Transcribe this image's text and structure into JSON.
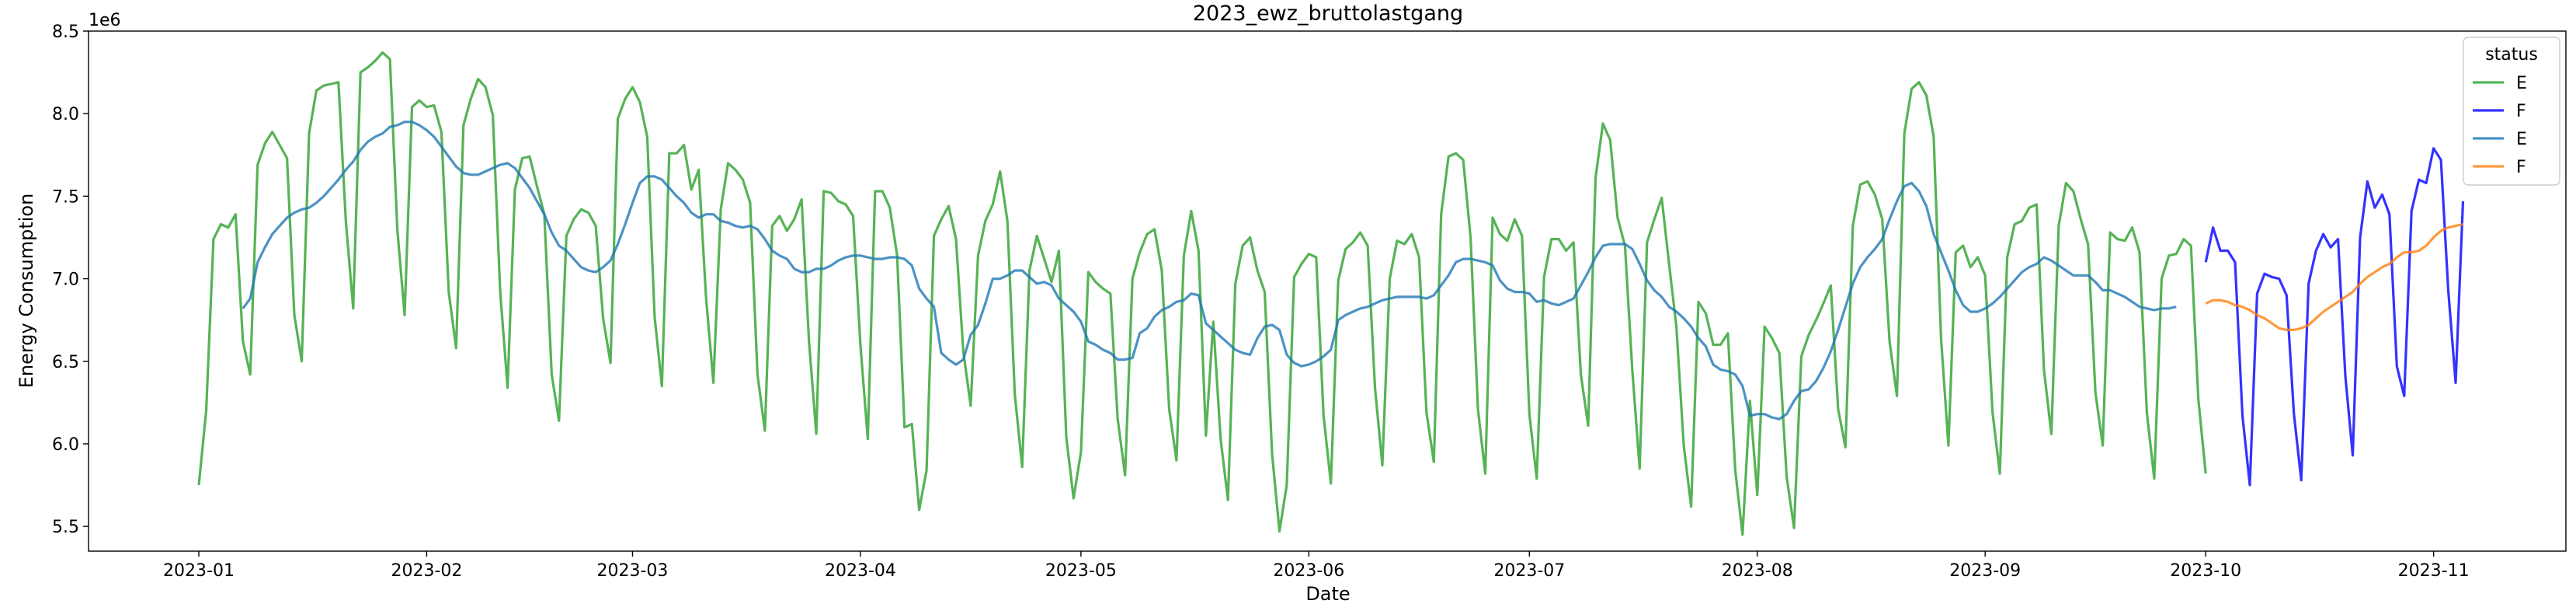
{
  "chart_data": {
    "type": "line",
    "title": "2023_ewz_bruttolastgang",
    "xlabel": "Date",
    "ylabel": "Energy Consumption",
    "y_offset_label": "1e6",
    "ylim": [
      5.35,
      8.5
    ],
    "xlim": [
      "2022-12-17",
      "2023-11-19"
    ],
    "x_ticks": [
      "2023-01-01",
      "2023-02-01",
      "2023-03-01",
      "2023-04-01",
      "2023-05-01",
      "2023-06-01",
      "2023-07-01",
      "2023-08-01",
      "2023-09-01",
      "2023-10-01",
      "2023-11-01"
    ],
    "x_tick_labels": [
      "2023-01",
      "2023-02",
      "2023-03",
      "2023-04",
      "2023-05",
      "2023-06",
      "2023-07",
      "2023-08",
      "2023-09",
      "2023-10",
      "2023-11"
    ],
    "y_ticks": [
      5.5,
      6.0,
      6.5,
      7.0,
      7.5,
      8.0,
      8.5
    ],
    "y_tick_labels": [
      "5.5",
      "6.0",
      "6.5",
      "7.0",
      "7.5",
      "8.0",
      "8.5"
    ],
    "grid": false,
    "legend": {
      "title": "status",
      "placement": "top-right",
      "entries": [
        {
          "label": "E",
          "color": "#2ca02c"
        },
        {
          "label": "F",
          "color": "#0000ff"
        },
        {
          "label": "E",
          "color": "#1f77b4"
        },
        {
          "label": "F",
          "color": "#ff7f0e"
        }
      ]
    },
    "series": [
      {
        "name": "E",
        "color": "#2ca02c",
        "start_date": "2023-01-01",
        "values": [
          5.75,
          6.2,
          7.24,
          7.33,
          7.31,
          7.39,
          6.62,
          6.42,
          7.69,
          7.82,
          7.89,
          7.81,
          7.73,
          6.78,
          6.5,
          7.88,
          8.14,
          8.17,
          8.18,
          8.19,
          7.35,
          6.82,
          8.25,
          8.28,
          8.32,
          8.37,
          8.33,
          7.3,
          6.78,
          8.04,
          8.08,
          8.04,
          8.05,
          7.89,
          6.92,
          6.58,
          7.93,
          8.09,
          8.21,
          8.16,
          7.99,
          6.92,
          6.34,
          7.54,
          7.73,
          7.74,
          7.56,
          7.39,
          6.42,
          6.14,
          7.26,
          7.36,
          7.42,
          7.4,
          7.32,
          6.76,
          6.49,
          7.97,
          8.09,
          8.16,
          8.07,
          7.86,
          6.77,
          6.35,
          7.76,
          7.76,
          7.81,
          7.54,
          7.66,
          6.89,
          6.37,
          7.42,
          7.7,
          7.66,
          7.6,
          7.46,
          6.42,
          6.08,
          7.32,
          7.38,
          7.29,
          7.36,
          7.48,
          6.62,
          6.06,
          7.53,
          7.52,
          7.47,
          7.45,
          7.38,
          6.6,
          6.03,
          7.53,
          7.53,
          7.43,
          7.14,
          6.1,
          6.12,
          5.6,
          5.84,
          7.26,
          7.36,
          7.44,
          7.24,
          6.56,
          6.23,
          7.14,
          7.35,
          7.45,
          7.65,
          7.35,
          6.3,
          5.86,
          7.05,
          7.26,
          7.12,
          6.98,
          7.17,
          6.04,
          5.67,
          5.95,
          7.04,
          6.98,
          6.94,
          6.91,
          6.15,
          5.81,
          7.0,
          7.16,
          7.27,
          7.3,
          7.05,
          6.21,
          5.9,
          7.14,
          7.41,
          7.17,
          6.05,
          6.74,
          6.03,
          5.66,
          6.97,
          7.2,
          7.25,
          7.05,
          6.92,
          5.94,
          5.47,
          5.75,
          7.01,
          7.09,
          7.15,
          7.13,
          6.17,
          5.76,
          6.99,
          7.18,
          7.22,
          7.28,
          7.2,
          6.34,
          5.87,
          7.0,
          7.23,
          7.21,
          7.27,
          7.13,
          6.19,
          5.89,
          7.39,
          7.74,
          7.76,
          7.72,
          7.25,
          6.21,
          5.82,
          7.37,
          7.27,
          7.23,
          7.36,
          7.26,
          6.18,
          5.79,
          7.01,
          7.24,
          7.24,
          7.17,
          7.22,
          6.42,
          6.11,
          7.61,
          7.94,
          7.84,
          7.37,
          7.2,
          6.45,
          5.85,
          7.22,
          7.36,
          7.49,
          7.09,
          6.71,
          5.99,
          5.62,
          6.86,
          6.79,
          6.6,
          6.6,
          6.67,
          5.84,
          5.45,
          6.26,
          5.69,
          6.71,
          6.64,
          6.55,
          5.8,
          5.49,
          6.53,
          6.66,
          6.75,
          6.85,
          6.96,
          6.21,
          5.98,
          7.32,
          7.57,
          7.59,
          7.51,
          7.36,
          6.62,
          6.29,
          7.88,
          8.15,
          8.19,
          8.11,
          7.86,
          6.64,
          5.99,
          7.16,
          7.2,
          7.07,
          7.13,
          7.02,
          6.19,
          5.82,
          7.13,
          7.33,
          7.35,
          7.43,
          7.45,
          6.45,
          6.06,
          7.32,
          7.58,
          7.53,
          7.36,
          7.21,
          6.31,
          5.99,
          7.28,
          7.24,
          7.23,
          7.31,
          7.16,
          6.19,
          5.79,
          7.0,
          7.14,
          7.15,
          7.24,
          7.2,
          6.27,
          5.82
        ]
      },
      {
        "name": "F",
        "color": "#0000ff",
        "start_date": "2023-10-01",
        "values": [
          7.1,
          7.31,
          7.17,
          7.17,
          7.1,
          6.17,
          5.75,
          6.91,
          7.03,
          7.01,
          7.0,
          6.9,
          6.18,
          5.78,
          6.97,
          7.17,
          7.27,
          7.19,
          7.24,
          6.41,
          5.93,
          7.25,
          7.59,
          7.43,
          7.51,
          7.39,
          6.47,
          6.29,
          7.41,
          7.6,
          7.58,
          7.79,
          7.72,
          6.93,
          6.37,
          7.47
        ]
      },
      {
        "name": "E",
        "color": "#1f77b4",
        "start_date": "2023-01-01",
        "values": [
          null,
          null,
          null,
          null,
          null,
          null,
          6.82,
          6.88,
          7.1,
          7.19,
          7.27,
          7.32,
          7.37,
          7.4,
          7.42,
          7.43,
          7.46,
          7.5,
          7.55,
          7.6,
          7.66,
          7.71,
          7.78,
          7.83,
          7.86,
          7.88,
          7.92,
          7.93,
          7.95,
          7.95,
          7.93,
          7.9,
          7.86,
          7.8,
          7.74,
          7.68,
          7.64,
          7.63,
          7.63,
          7.65,
          7.67,
          7.69,
          7.7,
          7.67,
          7.61,
          7.55,
          7.47,
          7.39,
          7.28,
          7.2,
          7.17,
          7.12,
          7.07,
          7.05,
          7.04,
          7.07,
          7.11,
          7.21,
          7.33,
          7.46,
          7.58,
          7.62,
          7.62,
          7.6,
          7.55,
          7.5,
          7.46,
          7.4,
          7.37,
          7.39,
          7.39,
          7.35,
          7.34,
          7.32,
          7.31,
          7.32,
          7.3,
          7.24,
          7.17,
          7.14,
          7.12,
          7.06,
          7.04,
          7.04,
          7.06,
          7.06,
          7.08,
          7.11,
          7.13,
          7.14,
          7.14,
          7.13,
          7.12,
          7.12,
          7.13,
          7.13,
          7.12,
          7.08,
          6.94,
          6.88,
          6.83,
          6.55,
          6.51,
          6.48,
          6.51,
          6.66,
          6.72,
          6.85,
          7.0,
          7.0,
          7.02,
          7.05,
          7.05,
          7.01,
          6.97,
          6.98,
          6.96,
          6.88,
          6.84,
          6.8,
          6.74,
          6.62,
          6.6,
          6.57,
          6.55,
          6.51,
          6.51,
          6.52,
          6.67,
          6.7,
          6.77,
          6.81,
          6.83,
          6.86,
          6.87,
          6.91,
          6.9,
          6.73,
          6.69,
          6.65,
          6.61,
          6.57,
          6.55,
          6.54,
          6.64,
          6.71,
          6.72,
          6.69,
          6.54,
          6.49,
          6.47,
          6.48,
          6.5,
          6.53,
          6.57,
          6.75,
          6.78,
          6.8,
          6.82,
          6.83,
          6.85,
          6.87,
          6.88,
          6.89,
          6.89,
          6.89,
          6.89,
          6.88,
          6.9,
          6.96,
          7.02,
          7.1,
          7.12,
          7.12,
          7.11,
          7.1,
          7.08,
          6.99,
          6.94,
          6.92,
          6.92,
          6.91,
          6.86,
          6.87,
          6.85,
          6.84,
          6.86,
          6.88,
          6.96,
          7.04,
          7.13,
          7.2,
          7.21,
          7.21,
          7.21,
          7.18,
          7.09,
          6.99,
          6.93,
          6.89,
          6.83,
          6.8,
          6.76,
          6.71,
          6.64,
          6.59,
          6.48,
          6.45,
          6.44,
          6.42,
          6.35,
          6.17,
          6.18,
          6.18,
          6.16,
          6.15,
          6.18,
          6.26,
          6.32,
          6.33,
          6.38,
          6.46,
          6.56,
          6.69,
          6.83,
          6.97,
          7.07,
          7.13,
          7.18,
          7.24,
          7.36,
          7.47,
          7.56,
          7.58,
          7.53,
          7.44,
          7.27,
          7.16,
          7.05,
          6.93,
          6.84,
          6.8,
          6.8,
          6.82,
          6.85,
          6.89,
          6.94,
          6.99,
          7.04,
          7.07,
          7.09,
          7.13,
          7.11,
          7.08,
          7.05,
          7.02,
          7.02,
          7.02,
          6.98,
          6.93,
          6.93,
          6.91,
          6.89,
          6.86,
          6.83,
          6.82,
          6.81,
          6.82,
          6.82,
          6.83
        ]
      },
      {
        "name": "F",
        "color": "#ff7f0e",
        "start_date": "2023-10-01",
        "values": [
          6.85,
          6.87,
          6.87,
          6.86,
          6.84,
          6.83,
          6.81,
          6.78,
          6.76,
          6.73,
          6.7,
          6.69,
          6.69,
          6.7,
          6.72,
          6.76,
          6.8,
          6.83,
          6.86,
          6.89,
          6.92,
          6.97,
          7.01,
          7.04,
          7.07,
          7.09,
          7.13,
          7.16,
          7.16,
          7.17,
          7.2,
          7.25,
          7.29,
          7.31,
          7.32,
          7.33
        ]
      }
    ]
  }
}
